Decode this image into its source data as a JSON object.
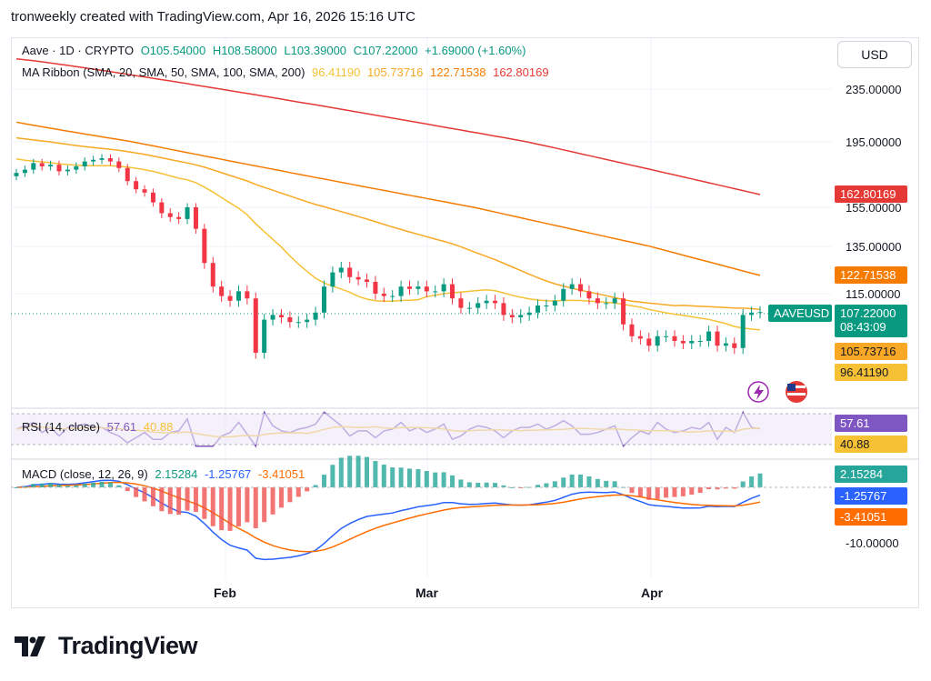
{
  "header": "tronweekly created with TradingView.com, Apr 16, 2026 15:16 UTC",
  "symbol_line": {
    "name": "Aave · 1D · CRYPTO",
    "open": "O105.54000",
    "high": "H108.58000",
    "low": "L103.39000",
    "close": "C107.22000",
    "change": "+1.69000 (+1.60%)"
  },
  "ma_line": {
    "label": "MA Ribbon (SMA, 20, SMA, 50, SMA, 100, SMA, 200)",
    "v1": "96.41190",
    "v2": "105.73716",
    "v3": "122.71538",
    "v4": "162.80169"
  },
  "rsi_line": {
    "label": "RSI (14, close)",
    "v1": "57.61",
    "v2": "40.88"
  },
  "macd_line": {
    "label": "MACD (close, 12, 26, 9)",
    "v1": "2.15284",
    "v2": "-1.25767",
    "v3": "-3.41051"
  },
  "currency": "USD",
  "price_axis": [
    "235.00000",
    "195.00000",
    "155.00000",
    "135.00000",
    "115.00000"
  ],
  "price_tags": {
    "ma200": "162.80169",
    "ma100": "122.71538",
    "symbol": "AAVEUSD",
    "last": "107.22000",
    "countdown": "08:43:09",
    "ma50": "105.73716",
    "ma20": "96.41190"
  },
  "rsi_tags": {
    "rsi": "57.61",
    "ma": "40.88"
  },
  "macd_tags": {
    "hist": "2.15284",
    "macd": "-1.25767",
    "signal": "-3.41051",
    "axis": "-10.00000"
  },
  "x_axis": [
    "Feb",
    "Mar",
    "Apr"
  ],
  "brand": "TradingView",
  "colors": {
    "up": "#089981",
    "down": "#f23645",
    "ma20": "#f7c136",
    "ma50": "#f9a825",
    "ma100": "#f57c00",
    "ma200": "#e53935",
    "rsi": "#7e57c2",
    "macd": "#2962ff",
    "signal": "#ff6d00"
  },
  "chart_data": [
    {
      "type": "candlestick",
      "title": "Aave · 1D · CRYPTO",
      "last_close": 107.22,
      "moving_averages": [
        {
          "name": "SMA 20",
          "last": 96.4119
        },
        {
          "name": "SMA 50",
          "last": 105.73716
        },
        {
          "name": "SMA 100",
          "last": 122.71538
        },
        {
          "name": "SMA 200",
          "last": 162.80169
        }
      ],
      "close_series": [
        176,
        178,
        182,
        180,
        181,
        177,
        178,
        180,
        183,
        184,
        185,
        183,
        179,
        171,
        166,
        164,
        158,
        152,
        150,
        149,
        155,
        144,
        128,
        118,
        114,
        112,
        116,
        113,
        90,
        104,
        106,
        105,
        103,
        103,
        104,
        107,
        118,
        124,
        126,
        122,
        121,
        120,
        115,
        114,
        114,
        118,
        117,
        118,
        116,
        116,
        119,
        113,
        109,
        109,
        111,
        112,
        111,
        106,
        105,
        106,
        107,
        110,
        110,
        112,
        117,
        119,
        116,
        113,
        111,
        111,
        113,
        102,
        97,
        96,
        93,
        97,
        97,
        95,
        94,
        95,
        95,
        99,
        93,
        94,
        92,
        106,
        107,
        107.22
      ]
    },
    {
      "type": "line",
      "title": "RSI (14, close)",
      "series": [
        {
          "name": "RSI",
          "last": 57.61
        },
        {
          "name": "RSI MA",
          "last": 40.88
        }
      ]
    },
    {
      "type": "bar",
      "title": "MACD (close, 12, 26, 9)",
      "series": [
        {
          "name": "Histogram",
          "last": 2.15284
        },
        {
          "name": "MACD",
          "last": -1.25767
        },
        {
          "name": "Signal",
          "last": -3.41051
        }
      ]
    }
  ]
}
